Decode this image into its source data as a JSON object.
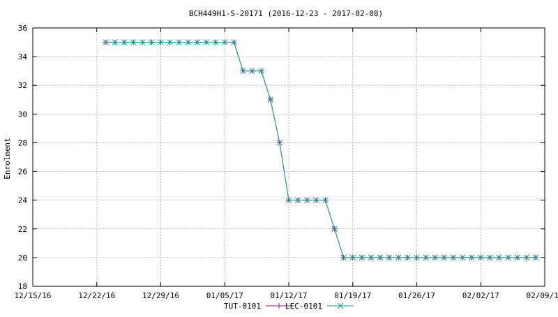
{
  "chart_data": {
    "type": "line",
    "title": "BCH449H1-S-20171 (2016-12-23 - 2017-02-08)",
    "xlabel": "",
    "ylabel": "Enrolment",
    "xlim": [
      "2016-12-15",
      "2017-02-09"
    ],
    "ylim": [
      18,
      36
    ],
    "x_ticks": [
      "2016-12-15",
      "2016-12-22",
      "2016-12-29",
      "2017-01-05",
      "2017-01-12",
      "2017-01-19",
      "2017-01-26",
      "2017-02-02",
      "2017-02-09"
    ],
    "x_tick_labels": [
      "12/15/16",
      "12/22/16",
      "12/29/16",
      "01/05/17",
      "01/12/17",
      "01/19/17",
      "01/26/17",
      "02/02/17",
      "02/09/17"
    ],
    "y_ticks": [
      18,
      20,
      22,
      24,
      26,
      28,
      30,
      32,
      34,
      36
    ],
    "grid": true,
    "legend": "bottom-center",
    "x": [
      "2016-12-23",
      "2016-12-24",
      "2016-12-25",
      "2016-12-26",
      "2016-12-27",
      "2016-12-28",
      "2016-12-29",
      "2016-12-30",
      "2016-12-31",
      "2017-01-01",
      "2017-01-02",
      "2017-01-03",
      "2017-01-04",
      "2017-01-05",
      "2017-01-06",
      "2017-01-07",
      "2017-01-08",
      "2017-01-09",
      "2017-01-10",
      "2017-01-11",
      "2017-01-12",
      "2017-01-13",
      "2017-01-14",
      "2017-01-15",
      "2017-01-16",
      "2017-01-17",
      "2017-01-18",
      "2017-01-19",
      "2017-01-20",
      "2017-01-21",
      "2017-01-22",
      "2017-01-23",
      "2017-01-24",
      "2017-01-25",
      "2017-01-26",
      "2017-01-27",
      "2017-01-28",
      "2017-01-29",
      "2017-01-30",
      "2017-01-31",
      "2017-02-01",
      "2017-02-02",
      "2017-02-03",
      "2017-02-04",
      "2017-02-05",
      "2017-02-06",
      "2017-02-07",
      "2017-02-08"
    ],
    "series": [
      {
        "name": "TUT-0101",
        "color": "#8b1a8b",
        "marker": "plus",
        "values": [
          35,
          35,
          35,
          35,
          35,
          35,
          35,
          35,
          35,
          35,
          35,
          35,
          35,
          35,
          35,
          33,
          33,
          33,
          31,
          28,
          24,
          24,
          24,
          24,
          24,
          22,
          20,
          20,
          20,
          20,
          20,
          20,
          20,
          20,
          20,
          20,
          20,
          20,
          20,
          20,
          20,
          20,
          20,
          20,
          20,
          20,
          20,
          20
        ]
      },
      {
        "name": "LEC-0101",
        "color": "#1a9a8a",
        "marker": "cross",
        "values": [
          35,
          35,
          35,
          35,
          35,
          35,
          35,
          35,
          35,
          35,
          35,
          35,
          35,
          35,
          35,
          33,
          33,
          33,
          31,
          28,
          24,
          24,
          24,
          24,
          24,
          22,
          20,
          20,
          20,
          20,
          20,
          20,
          20,
          20,
          20,
          20,
          20,
          20,
          20,
          20,
          20,
          20,
          20,
          20,
          20,
          20,
          20,
          20
        ]
      }
    ]
  }
}
